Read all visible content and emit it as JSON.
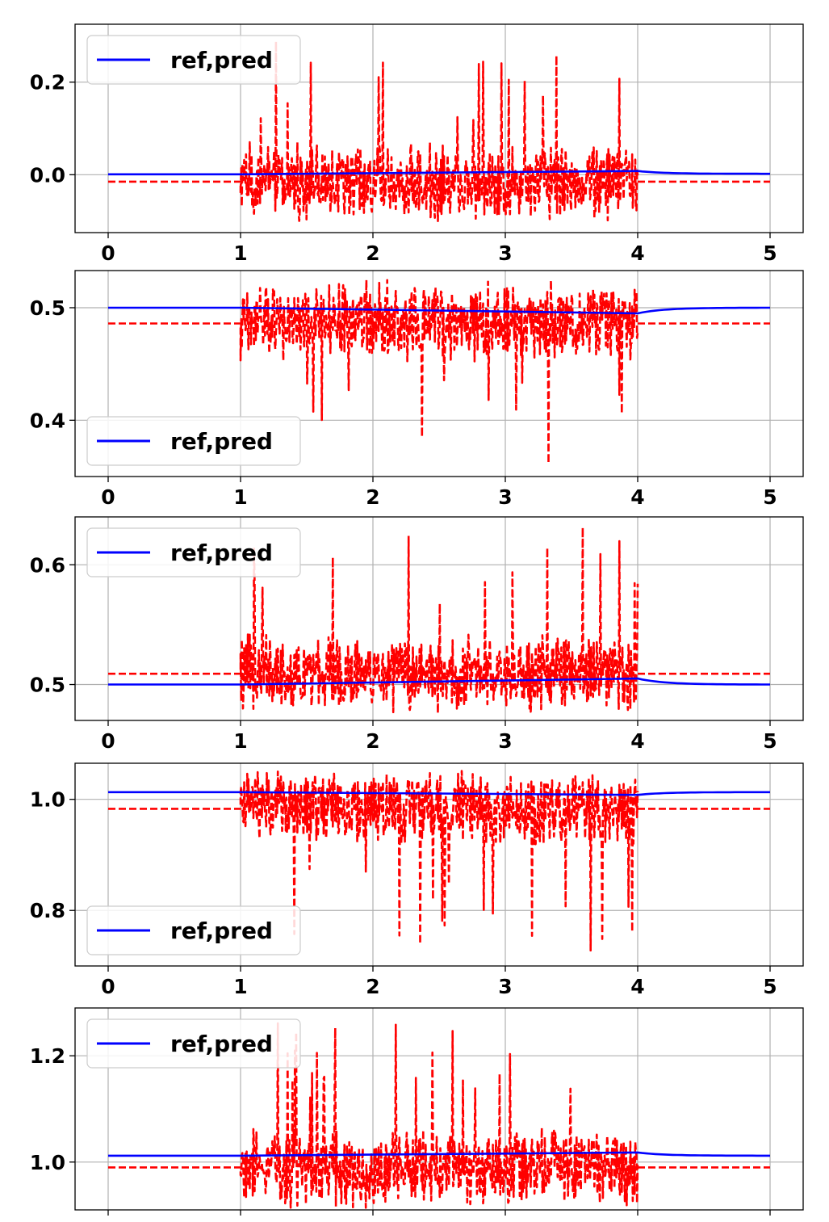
{
  "legend_label": "ref,pred",
  "colors": {
    "ref": "#0000ff",
    "pred": "#ff0000",
    "grid": "#b0b0b0",
    "axes": "#000000"
  },
  "chart_data": [
    {
      "type": "line",
      "x": [
        0,
        1,
        4,
        5
      ],
      "xlim": [
        -0.25,
        5.25
      ],
      "xticks": [
        "0",
        "1",
        "2",
        "3",
        "4",
        "5"
      ],
      "ylim": [
        -0.125,
        0.325
      ],
      "yticks": [
        {
          "value": 0.0,
          "label": "0.0"
        },
        {
          "value": 0.2,
          "label": "0.2"
        }
      ],
      "grid": true,
      "legend_position": "top-left",
      "series": [
        {
          "name": "ref,pred",
          "style": "solid",
          "values": [
            0.001,
            0.001,
            0.008,
            0.002
          ]
        },
        {
          "name": "ref,pred",
          "style": "dashed",
          "values": [
            -0.015,
            -0.015,
            -0.015,
            -0.015
          ],
          "noisy_interval": [
            1,
            4
          ],
          "noise_range": [
            -0.1,
            0.3
          ]
        }
      ]
    },
    {
      "type": "line",
      "x": [
        0,
        1,
        4,
        5
      ],
      "xlim": [
        -0.25,
        5.25
      ],
      "xticks": [
        "0",
        "1",
        "2",
        "3",
        "4",
        "5"
      ],
      "ylim": [
        0.35,
        0.533
      ],
      "yticks": [
        {
          "value": 0.4,
          "label": "0.4"
        },
        {
          "value": 0.5,
          "label": "0.5"
        }
      ],
      "grid": true,
      "legend_position": "bottom-left",
      "series": [
        {
          "name": "ref,pred",
          "style": "solid",
          "values": [
            0.5,
            0.5,
            0.495,
            0.5
          ]
        },
        {
          "name": "ref,pred",
          "style": "dashed",
          "values": [
            0.486,
            0.486,
            0.486,
            0.486
          ],
          "noisy_interval": [
            1,
            4
          ],
          "noise_range": [
            0.36,
            0.525
          ]
        }
      ]
    },
    {
      "type": "line",
      "x": [
        0,
        1,
        4,
        5
      ],
      "xlim": [
        -0.25,
        5.25
      ],
      "xticks": [
        "0",
        "1",
        "2",
        "3",
        "4",
        "5"
      ],
      "ylim": [
        0.47,
        0.64
      ],
      "yticks": [
        {
          "value": 0.5,
          "label": "0.5"
        },
        {
          "value": 0.6,
          "label": "0.6"
        }
      ],
      "grid": true,
      "legend_position": "top-left",
      "series": [
        {
          "name": "ref,pred",
          "style": "solid",
          "values": [
            0.5,
            0.5,
            0.505,
            0.5
          ]
        },
        {
          "name": "ref,pred",
          "style": "dashed",
          "values": [
            0.509,
            0.509,
            0.509,
            0.509
          ],
          "noisy_interval": [
            1,
            4
          ],
          "noise_range": [
            0.477,
            0.632
          ]
        }
      ]
    },
    {
      "type": "line",
      "x": [
        0,
        1,
        4,
        5
      ],
      "xlim": [
        -0.25,
        5.25
      ],
      "xticks": [
        "0",
        "1",
        "2",
        "3",
        "4",
        "5"
      ],
      "ylim": [
        0.7,
        1.065
      ],
      "yticks": [
        {
          "value": 0.8,
          "label": "0.8"
        },
        {
          "value": 1.0,
          "label": "1.0"
        }
      ],
      "grid": true,
      "legend_position": "bottom-left",
      "series": [
        {
          "name": "ref,pred",
          "style": "solid",
          "values": [
            1.013,
            1.013,
            1.008,
            1.013
          ]
        },
        {
          "name": "ref,pred",
          "style": "dashed",
          "values": [
            0.983,
            0.983,
            0.983,
            0.983
          ],
          "noisy_interval": [
            1,
            4
          ],
          "noise_range": [
            0.72,
            1.045
          ]
        }
      ]
    },
    {
      "type": "line",
      "x": [
        0,
        1,
        4,
        5
      ],
      "xlim": [
        -0.25,
        5.25
      ],
      "xticks": [
        "",
        "",
        "",
        "",
        "",
        ""
      ],
      "ylim": [
        0.91,
        1.29
      ],
      "yticks": [
        {
          "value": 1.0,
          "label": "1.0"
        },
        {
          "value": 1.2,
          "label": "1.2"
        }
      ],
      "grid": true,
      "legend_position": "top-left",
      "series": [
        {
          "name": "ref,pred",
          "style": "solid",
          "values": [
            1.012,
            1.012,
            1.018,
            1.012
          ]
        },
        {
          "name": "ref,pred",
          "style": "dashed",
          "values": [
            0.99,
            0.99,
            0.99,
            0.99
          ],
          "noisy_interval": [
            1,
            4
          ],
          "noise_range": [
            0.915,
            1.265
          ]
        }
      ]
    }
  ]
}
